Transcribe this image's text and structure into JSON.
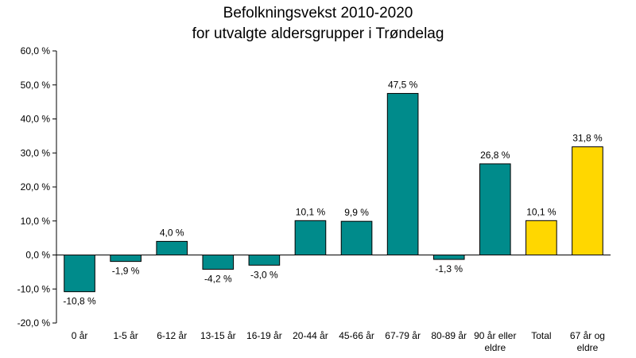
{
  "chart_data": {
    "type": "bar",
    "title_line1": "Befolkningsvekst 2010-2020",
    "title_line2": "for utvalgte aldersgrupper i Trøndelag",
    "xlabel": "",
    "ylabel": "",
    "ylim": [
      -20,
      60
    ],
    "grid": false,
    "legend": "none",
    "y_ticks": [
      60,
      50,
      40,
      30,
      20,
      10,
      0,
      -10,
      -20
    ],
    "y_tick_labels": [
      "60,0 %",
      "50,0 %",
      "40,0 %",
      "30,0 %",
      "20,0 %",
      "10,0 %",
      "0,0 %",
      "-10,0 %",
      "-20,0 %"
    ],
    "categories": [
      [
        "0 år"
      ],
      [
        "1-5 år"
      ],
      [
        "6-12 år"
      ],
      [
        "13-15 år"
      ],
      [
        "16-19 år"
      ],
      [
        "20-44 år"
      ],
      [
        "45-66 år"
      ],
      [
        "67-79 år"
      ],
      [
        "80-89 år"
      ],
      [
        "90 år eller",
        "eldre"
      ],
      [
        "Total"
      ],
      [
        "67 år og",
        "eldre"
      ]
    ],
    "values": [
      -10.8,
      -1.9,
      4.0,
      -4.2,
      -3.0,
      10.1,
      9.9,
      47.5,
      -1.3,
      26.8,
      10.1,
      31.8
    ],
    "data_labels": [
      "-10,8 %",
      "-1,9 %",
      "4,0 %",
      "-4,2 %",
      "-3,0 %",
      "10,1 %",
      "9,9 %",
      "47,5 %",
      "-1,3 %",
      "26,8 %",
      "10,1 %",
      "31,8 %"
    ],
    "bar_colors": [
      "#008B8B",
      "#008B8B",
      "#008B8B",
      "#008B8B",
      "#008B8B",
      "#008B8B",
      "#008B8B",
      "#008B8B",
      "#008B8B",
      "#008B8B",
      "#FFD700",
      "#FFD700"
    ]
  }
}
